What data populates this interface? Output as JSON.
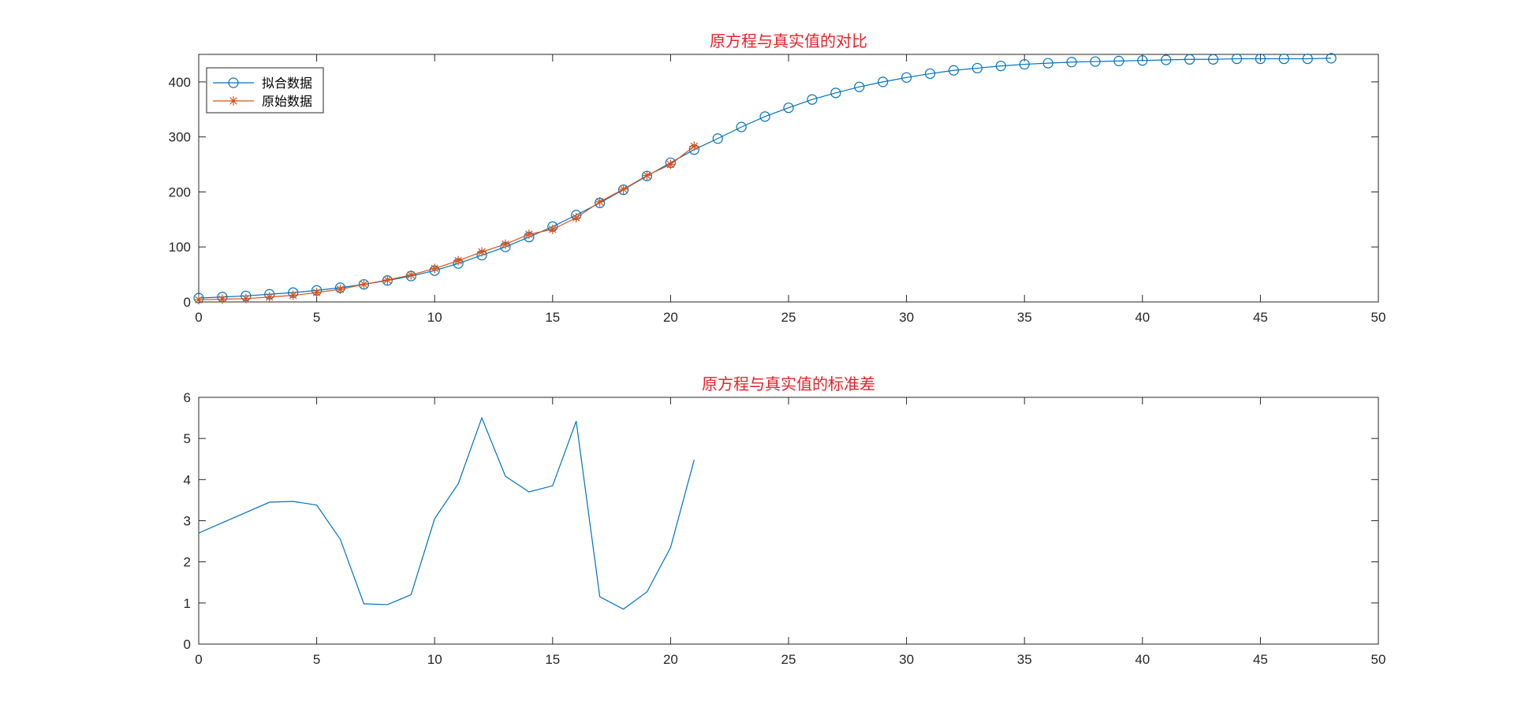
{
  "colors": {
    "fit": "#0072bd",
    "orig": "#d95319",
    "std": "#0072bd",
    "title": "#e8202a",
    "axis": "#262626"
  },
  "chart_data": [
    {
      "type": "line",
      "title": "原方程与真实值的对比",
      "xlim": [
        0,
        50
      ],
      "ylim": [
        0,
        450
      ],
      "xticks": [
        0,
        5,
        10,
        15,
        20,
        25,
        30,
        35,
        40,
        45,
        50
      ],
      "yticks": [
        0,
        100,
        200,
        300,
        400
      ],
      "legend_position": "top-left",
      "series": [
        {
          "name": "拟合数据",
          "marker": "circle",
          "x": [
            0,
            1,
            2,
            3,
            4,
            5,
            6,
            7,
            8,
            9,
            10,
            11,
            12,
            13,
            14,
            15,
            16,
            17,
            18,
            19,
            20,
            21,
            22,
            23,
            24,
            25,
            26,
            27,
            28,
            29,
            30,
            31,
            32,
            33,
            34,
            35,
            36,
            37,
            38,
            39,
            40,
            41,
            42,
            43,
            44,
            45,
            46,
            47,
            48
          ],
          "y": [
            7,
            9,
            11,
            14,
            17,
            21,
            26,
            32,
            39,
            47,
            57,
            70,
            85,
            100,
            118,
            137,
            158,
            180,
            204,
            229,
            253,
            277,
            297,
            318,
            337,
            353,
            368,
            380,
            391,
            400,
            408,
            415,
            421,
            425,
            429,
            432,
            434,
            436,
            437,
            438,
            439,
            440,
            441,
            441,
            442,
            442,
            442,
            442,
            443
          ]
        },
        {
          "name": "原始数据",
          "marker": "asterisk",
          "x": [
            0,
            1,
            2,
            3,
            4,
            5,
            6,
            7,
            8,
            9,
            10,
            11,
            12,
            13,
            14,
            15,
            16,
            17,
            18,
            19,
            20,
            21
          ],
          "y": [
            4,
            5,
            6,
            9,
            12,
            17,
            23,
            32,
            40,
            49,
            61,
            75,
            91,
            105,
            123,
            132,
            153,
            182,
            205,
            230,
            250,
            283
          ]
        }
      ]
    },
    {
      "type": "line",
      "title": "原方程与真实值的标准差",
      "xlim": [
        0,
        50
      ],
      "ylim": [
        0,
        6
      ],
      "xticks": [
        0,
        5,
        10,
        15,
        20,
        25,
        30,
        35,
        40,
        45,
        50
      ],
      "yticks": [
        0,
        1,
        2,
        3,
        4,
        5,
        6
      ],
      "series": [
        {
          "x": [
            0,
            1,
            2,
            3,
            4,
            5,
            6,
            7,
            8,
            9,
            10,
            11,
            12,
            13,
            14,
            15,
            16,
            17,
            18,
            19,
            20,
            21
          ],
          "y": [
            2.7,
            2.95,
            3.2,
            3.45,
            3.47,
            3.38,
            2.55,
            0.98,
            0.96,
            1.2,
            3.05,
            3.9,
            5.5,
            4.08,
            3.7,
            3.85,
            5.42,
            1.15,
            0.85,
            1.27,
            2.35,
            4.48
          ]
        }
      ]
    }
  ]
}
